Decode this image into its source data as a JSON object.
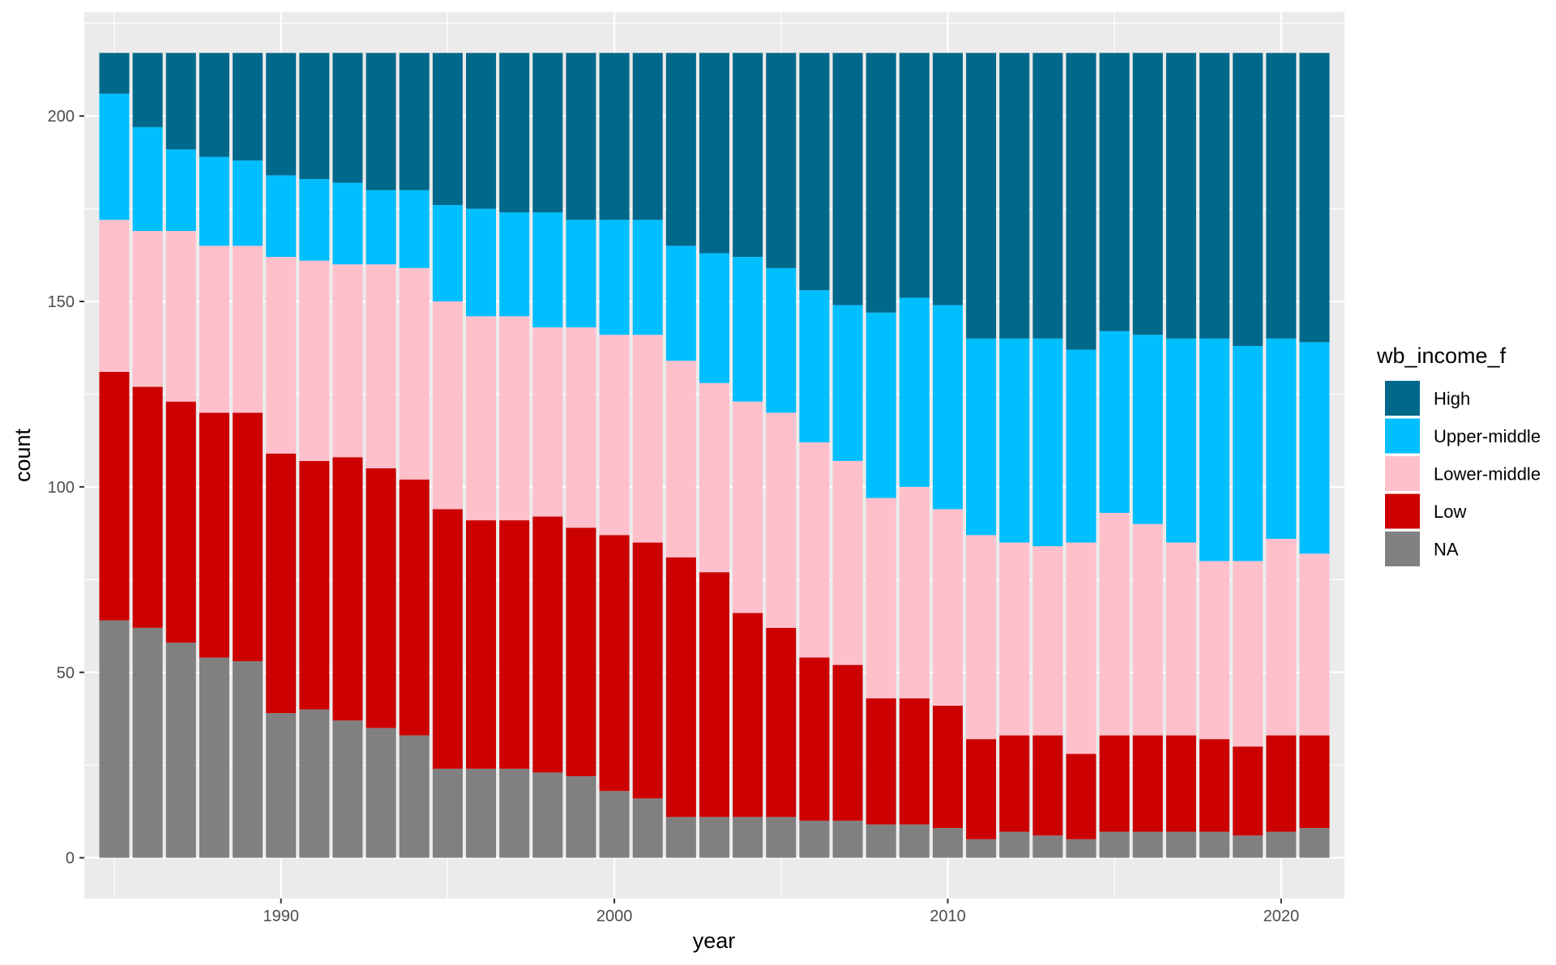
{
  "chart_data": {
    "type": "bar",
    "stacked": true,
    "xlabel": "year",
    "ylabel": "count",
    "xlim": [
      1984.1,
      2021.9
    ],
    "ylim": [
      -11,
      228
    ],
    "x_ticks": [
      1990,
      2000,
      2010,
      2020
    ],
    "y_ticks": [
      0,
      50,
      100,
      150,
      200
    ],
    "grid": true,
    "legend": {
      "title": "wb_income_f",
      "position": "right",
      "order": [
        "High",
        "Upper-middle",
        "Lower-middle",
        "Low",
        "NA"
      ]
    },
    "x": [
      1985,
      1986,
      1987,
      1988,
      1989,
      1990,
      1991,
      1992,
      1993,
      1994,
      1995,
      1996,
      1997,
      1998,
      1999,
      2000,
      2001,
      2002,
      2003,
      2004,
      2005,
      2006,
      2007,
      2008,
      2009,
      2010,
      2011,
      2012,
      2013,
      2014,
      2015,
      2016,
      2017,
      2018,
      2019,
      2020,
      2021
    ],
    "series": [
      {
        "name": "NA",
        "color": "#808080",
        "values": [
          64,
          62,
          58,
          54,
          53,
          39,
          40,
          37,
          35,
          33,
          24,
          24,
          24,
          23,
          22,
          18,
          16,
          11,
          11,
          11,
          11,
          10,
          10,
          9,
          9,
          8,
          5,
          7,
          6,
          5,
          7,
          7,
          7,
          7,
          6,
          7,
          8
        ]
      },
      {
        "name": "Low",
        "color": "#CC0000",
        "values": [
          67,
          65,
          65,
          66,
          67,
          70,
          67,
          71,
          70,
          69,
          70,
          67,
          67,
          69,
          67,
          69,
          69,
          70,
          66,
          55,
          51,
          44,
          42,
          34,
          34,
          33,
          27,
          26,
          27,
          23,
          26,
          26,
          26,
          25,
          24,
          26,
          25
        ]
      },
      {
        "name": "Lower-middle",
        "color": "#FFC0CB",
        "values": [
          41,
          42,
          46,
          45,
          45,
          53,
          54,
          52,
          55,
          57,
          56,
          55,
          55,
          51,
          54,
          54,
          56,
          53,
          51,
          57,
          58,
          58,
          55,
          54,
          57,
          53,
          55,
          52,
          51,
          57,
          60,
          57,
          52,
          48,
          50,
          53,
          49
        ]
      },
      {
        "name": "Upper-middle",
        "color": "#00BFFF",
        "values": [
          34,
          28,
          22,
          24,
          23,
          22,
          22,
          22,
          20,
          21,
          26,
          29,
          28,
          31,
          29,
          31,
          31,
          31,
          35,
          39,
          39,
          41,
          42,
          50,
          51,
          55,
          53,
          55,
          56,
          52,
          49,
          51,
          55,
          60,
          58,
          54,
          57
        ]
      },
      {
        "name": "High",
        "color": "#00688B",
        "values": [
          11,
          20,
          26,
          28,
          29,
          33,
          34,
          35,
          37,
          37,
          41,
          42,
          43,
          43,
          45,
          45,
          45,
          52,
          54,
          55,
          58,
          64,
          68,
          70,
          66,
          68,
          77,
          77,
          77,
          80,
          75,
          76,
          77,
          77,
          79,
          77,
          78
        ]
      }
    ]
  }
}
